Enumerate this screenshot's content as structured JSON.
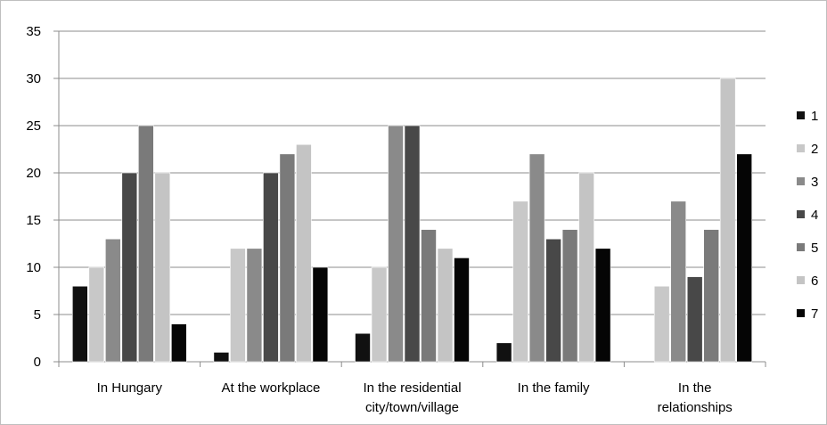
{
  "chart_data": {
    "type": "bar",
    "title": "",
    "xlabel": "",
    "ylabel": "",
    "ylim": [
      0,
      35
    ],
    "yticks": [
      0,
      5,
      10,
      15,
      20,
      25,
      30,
      35
    ],
    "grid": true,
    "legend_position": "right",
    "categories": [
      [
        "In Hungary"
      ],
      [
        "At the workplace"
      ],
      [
        "In the residential",
        "city/town/village"
      ],
      [
        "In the family"
      ],
      [
        "In the",
        "relationships"
      ]
    ],
    "series": [
      {
        "name": "1",
        "color": "#111111",
        "values": [
          8,
          1,
          3,
          2,
          0
        ]
      },
      {
        "name": "2",
        "color": "#c8c8c8",
        "values": [
          10,
          12,
          10,
          17,
          8
        ]
      },
      {
        "name": "3",
        "color": "#8a8a8a",
        "values": [
          13,
          12,
          25,
          22,
          17
        ]
      },
      {
        "name": "4",
        "color": "#484848",
        "values": [
          20,
          20,
          25,
          13,
          9
        ]
      },
      {
        "name": "5",
        "color": "#7a7a7a",
        "values": [
          25,
          22,
          14,
          14,
          14
        ]
      },
      {
        "name": "6",
        "color": "#c4c4c4",
        "values": [
          20,
          23,
          12,
          20,
          30
        ]
      },
      {
        "name": "7",
        "color": "#050505",
        "values": [
          4,
          10,
          11,
          12,
          22
        ]
      }
    ]
  }
}
